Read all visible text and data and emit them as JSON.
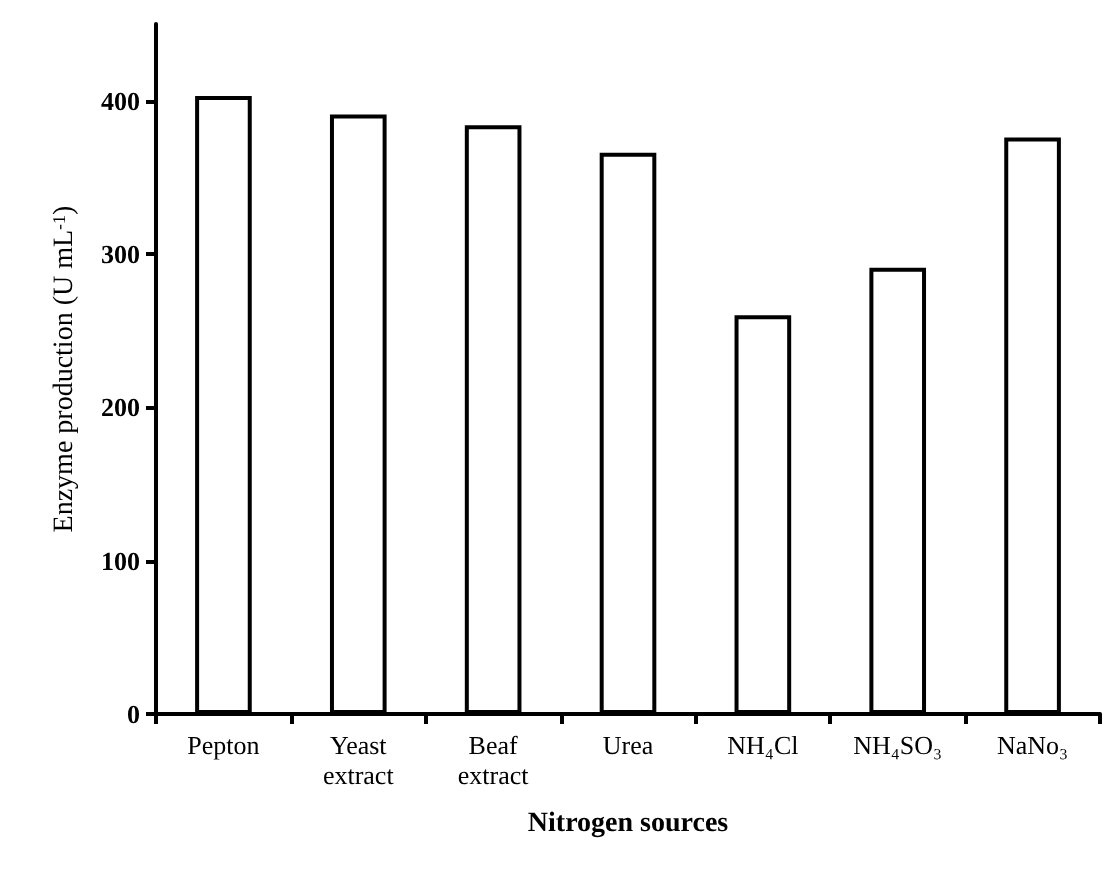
{
  "chart_data": {
    "type": "bar",
    "xlabel": "Nitrogen sources",
    "ylabel": "Enzyme production (U mL$^{-1}$)",
    "categories": [
      "Pepton",
      "Yeast extract",
      "Beaf extract",
      "Urea",
      "NH₄Cl",
      "NH₄SO₃",
      "NaNo₃"
    ],
    "values": [
      403,
      391,
      384,
      366,
      260,
      291,
      376
    ],
    "color": "#ffffff",
    "ylim": [
      0,
      450
    ],
    "yticks": [
      0,
      100,
      200,
      300,
      400
    ],
    "grid": false
  }
}
